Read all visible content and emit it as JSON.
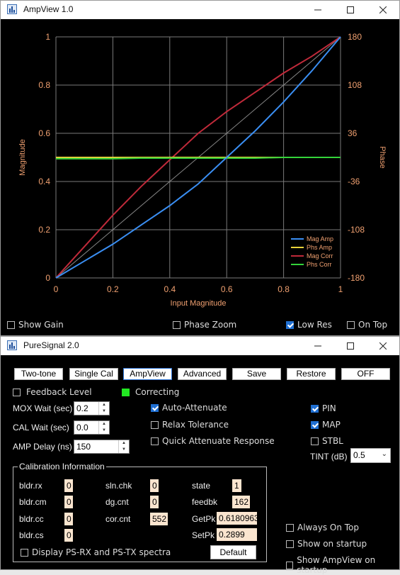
{
  "ampview": {
    "title": "AmpView 1.0",
    "checkboxes": {
      "show_gain": {
        "label": "Show Gain",
        "checked": false
      },
      "phase_zoom": {
        "label": "Phase Zoom",
        "checked": false
      },
      "low_res": {
        "label": "Low Res",
        "checked": true
      },
      "on_top": {
        "label": "On Top",
        "checked": false
      }
    }
  },
  "chart_data": {
    "type": "line",
    "xlabel": "Input Magnitude",
    "ylabel": "Magnitude",
    "y2label": "Phase",
    "xlim": [
      0,
      1
    ],
    "ylim": [
      0,
      1
    ],
    "y2lim": [
      -180,
      180
    ],
    "x_ticks": [
      "0",
      "0.2",
      "0.4",
      "0.6",
      "0.8",
      "1"
    ],
    "y_ticks": [
      "0",
      "0.2",
      "0.4",
      "0.6",
      "0.8",
      "1"
    ],
    "y2_ticks": [
      "-180",
      "-108",
      "-36",
      "36",
      "108",
      "180"
    ],
    "grid": true,
    "legend_position": "bottom-right",
    "x": [
      0,
      0.1,
      0.2,
      0.3,
      0.4,
      0.5,
      0.6,
      0.7,
      0.8,
      0.9,
      1.0
    ],
    "series": [
      {
        "name": "Mag Amp",
        "color": "#3a8ef2",
        "axis": "left",
        "values": [
          0,
          0.07,
          0.14,
          0.22,
          0.3,
          0.39,
          0.5,
          0.61,
          0.73,
          0.86,
          1.0
        ]
      },
      {
        "name": "Phs Amp",
        "color": "#e8d23a",
        "axis": "right",
        "values": [
          0,
          0,
          0,
          0,
          0,
          0,
          0,
          0,
          0,
          0,
          0
        ]
      },
      {
        "name": "Mag Corr",
        "color": "#c02a3a",
        "axis": "left",
        "values": [
          0,
          0.13,
          0.26,
          0.38,
          0.49,
          0.6,
          0.69,
          0.77,
          0.85,
          0.92,
          1.0
        ]
      },
      {
        "name": "Phs Corr",
        "color": "#34d33a",
        "axis": "right",
        "values": [
          -2,
          -2,
          -2,
          -1,
          -1,
          -1,
          -1,
          -1,
          0,
          0,
          0
        ]
      }
    ],
    "reference_line": {
      "x": [
        0,
        1
      ],
      "values": [
        0,
        1
      ],
      "color": "#888888"
    }
  },
  "puresignal": {
    "title": "PureSignal 2.0",
    "buttons": [
      "Two-tone",
      "Single Cal",
      "AmpView",
      "Advanced",
      "Save",
      "Restore",
      "OFF"
    ],
    "feedback_level": {
      "label": "Feedback Level",
      "checked": false
    },
    "correcting": {
      "label": "Correcting",
      "color": "#22e822"
    },
    "mox_wait": {
      "label": "MOX Wait (sec)",
      "value": "0.2"
    },
    "cal_wait": {
      "label": "CAL Wait (sec)",
      "value": "0.0"
    },
    "amp_delay": {
      "label": "AMP Delay (ns)",
      "value": "150"
    },
    "auto_attenuate": {
      "label": "Auto-Attenuate",
      "checked": true
    },
    "relax_tolerance": {
      "label": "Relax Tolerance",
      "checked": false
    },
    "quick_attenuate": {
      "label": "Quick Attenuate Response",
      "checked": false
    },
    "pin": {
      "label": "PIN",
      "checked": true
    },
    "map": {
      "label": "MAP",
      "checked": true
    },
    "stbl": {
      "label": "STBL",
      "checked": false
    },
    "tint": {
      "label": "TINT (dB)",
      "value": "0.5"
    },
    "calibration": {
      "title": "Calibration Information",
      "bldr_rx": {
        "label": "bldr.rx",
        "value": "0"
      },
      "bldr_cm": {
        "label": "bldr.cm",
        "value": "0"
      },
      "bldr_cc": {
        "label": "bldr.cc",
        "value": "0"
      },
      "bldr_cs": {
        "label": "bldr.cs",
        "value": "0"
      },
      "sln_chk": {
        "label": "sln.chk",
        "value": "0"
      },
      "dg_cnt": {
        "label": "dg.cnt",
        "value": "0"
      },
      "cor_cnt": {
        "label": "cor.cnt",
        "value": "552"
      },
      "state": {
        "label": "state",
        "value": "1"
      },
      "feedbk": {
        "label": "feedbk",
        "value": "162"
      },
      "getpk": {
        "label": "GetPk",
        "value": "0.6180963"
      },
      "setpk": {
        "label": "SetPk",
        "value": "0.2899"
      },
      "display_spectra": {
        "label": "Display PS-RX and PS-TX spectra",
        "checked": false
      },
      "default_label": "Default"
    },
    "always_on_top": {
      "label": "Always On Top",
      "checked": false
    },
    "show_on_startup": {
      "label": "Show on startup",
      "checked": false
    },
    "show_ampview_on_startup": {
      "label": "Show AmpView on startup",
      "checked": false
    }
  }
}
